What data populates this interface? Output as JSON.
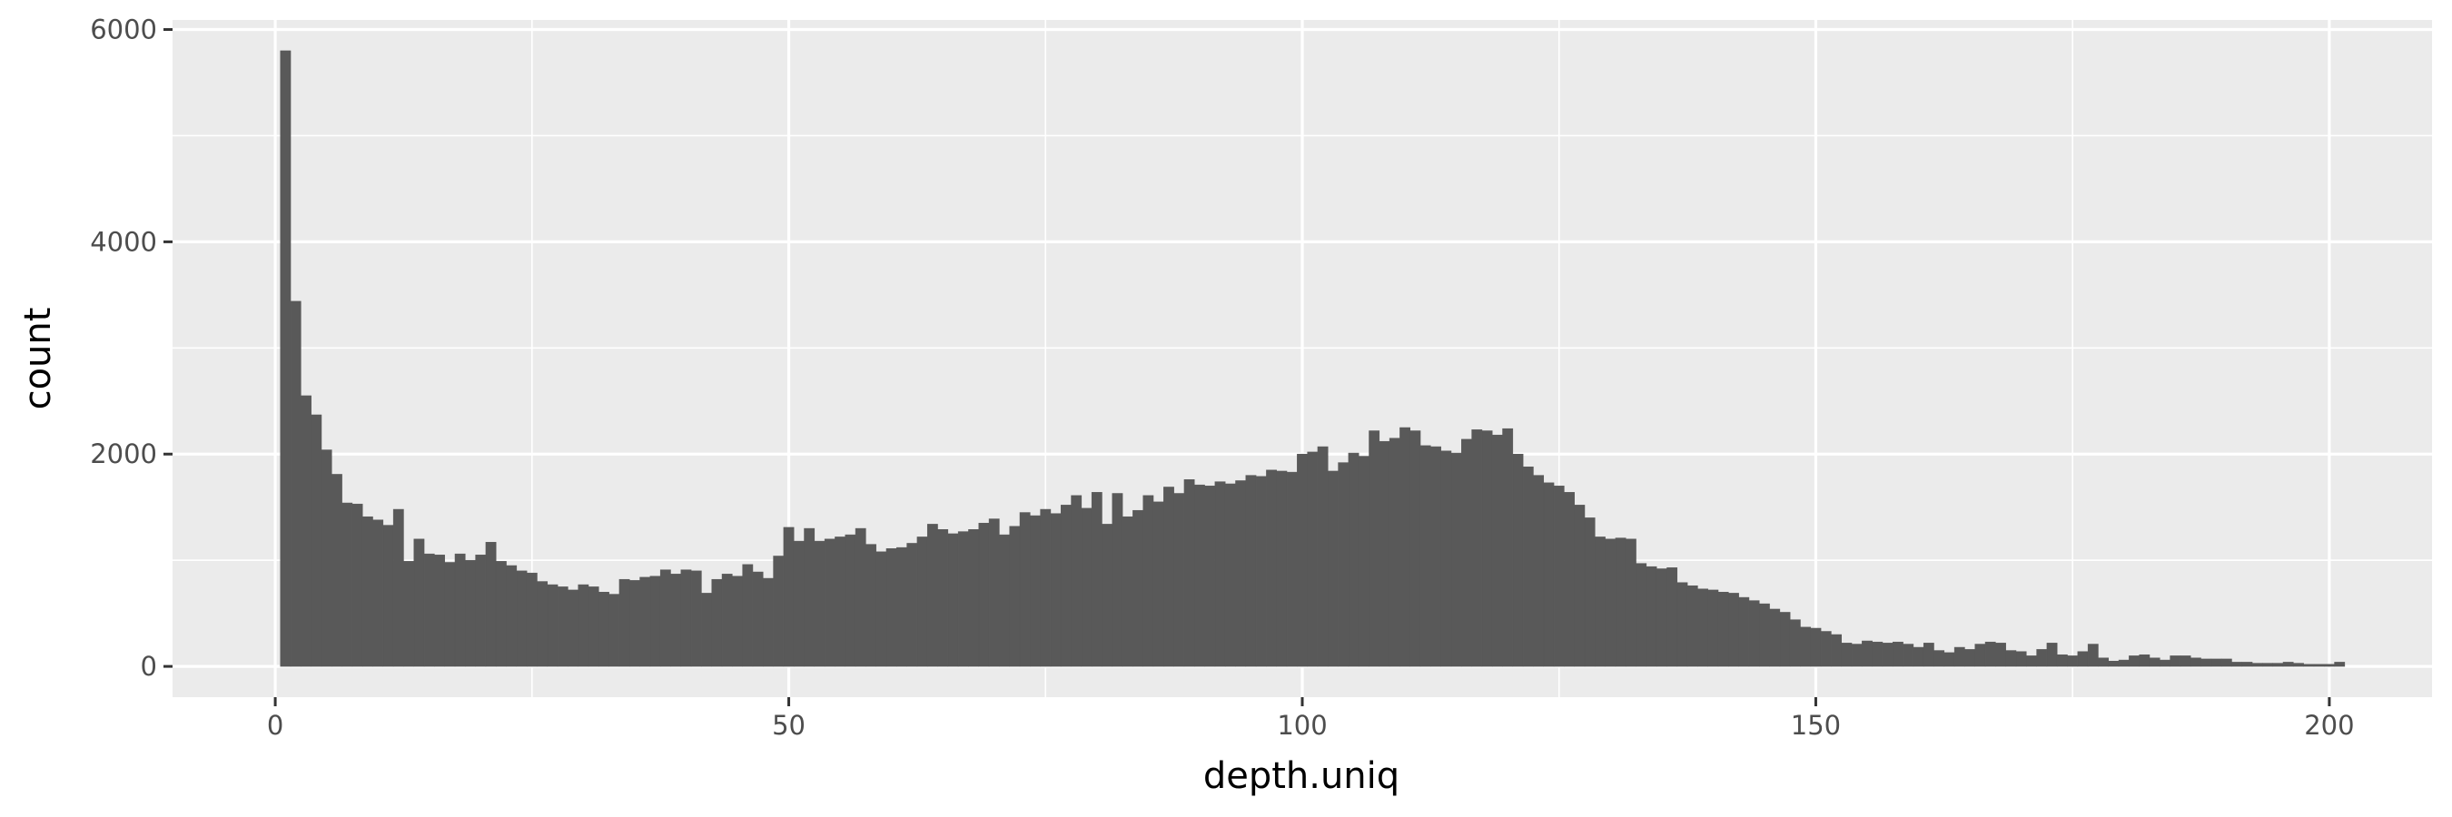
{
  "chart_data": {
    "type": "bar",
    "subtype": "histogram",
    "title": "",
    "xlabel": "depth.uniq",
    "ylabel": "count",
    "xlim": [
      -10,
      210
    ],
    "ylim": [
      -290,
      6090
    ],
    "x_ticks": [
      0,
      50,
      100,
      150,
      200
    ],
    "x_tick_labels": [
      "0",
      "50",
      "100",
      "150",
      "200"
    ],
    "y_ticks": [
      0,
      2000,
      4000,
      6000
    ],
    "y_tick_labels": [
      "0",
      "2000",
      "4000",
      "6000"
    ],
    "bin_width": 1,
    "bins_start": 1,
    "values": [
      5800,
      3440,
      2550,
      2370,
      2040,
      1810,
      1540,
      1530,
      1410,
      1380,
      1330,
      1480,
      990,
      1200,
      1060,
      1050,
      980,
      1060,
      1000,
      1050,
      1170,
      990,
      950,
      900,
      880,
      800,
      770,
      750,
      720,
      770,
      750,
      700,
      680,
      820,
      810,
      840,
      850,
      910,
      870,
      910,
      900,
      690,
      820,
      870,
      850,
      960,
      890,
      830,
      1040,
      1310,
      1180,
      1300,
      1180,
      1200,
      1220,
      1240,
      1300,
      1150,
      1080,
      1110,
      1120,
      1160,
      1220,
      1340,
      1290,
      1250,
      1270,
      1290,
      1350,
      1390,
      1240,
      1320,
      1450,
      1420,
      1480,
      1440,
      1520,
      1610,
      1490,
      1640,
      1340,
      1630,
      1410,
      1470,
      1610,
      1550,
      1690,
      1630,
      1760,
      1710,
      1700,
      1740,
      1720,
      1750,
      1800,
      1790,
      1850,
      1840,
      1830,
      2000,
      2020,
      2070,
      1840,
      1920,
      2010,
      1980,
      2220,
      2120,
      2150,
      2250,
      2220,
      2080,
      2070,
      2030,
      2010,
      2140,
      2230,
      2220,
      2180,
      2240,
      2000,
      1880,
      1800,
      1730,
      1700,
      1640,
      1520,
      1400,
      1220,
      1200,
      1210,
      1200,
      970,
      940,
      920,
      930,
      790,
      760,
      730,
      720,
      700,
      690,
      650,
      620,
      590,
      540,
      510,
      440,
      370,
      360,
      330,
      300,
      220,
      210,
      240,
      230,
      220,
      230,
      210,
      180,
      220,
      150,
      130,
      180,
      160,
      210,
      230,
      220,
      150,
      140,
      100,
      160,
      220,
      110,
      100,
      140,
      210,
      80,
      50,
      60,
      100,
      110,
      80,
      60,
      100,
      100,
      80,
      70,
      70,
      70,
      40,
      40,
      30,
      30,
      30,
      40,
      30,
      20,
      20,
      20,
      40
    ],
    "colors": {
      "panel_background": "#ebebeb",
      "grid": "#ffffff",
      "bar_fill": "#595959",
      "tick": "#333333"
    }
  }
}
